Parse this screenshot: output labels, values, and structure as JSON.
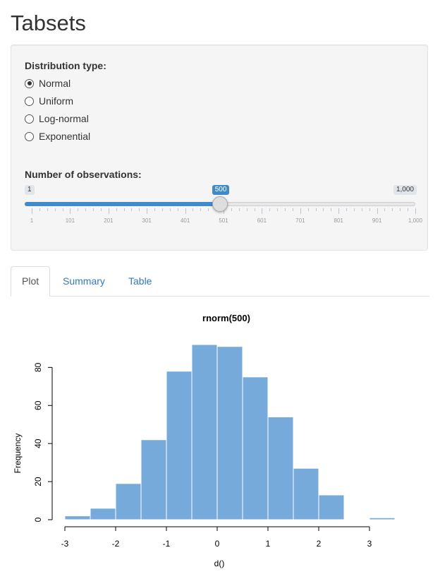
{
  "page": {
    "title": "Tabsets"
  },
  "controls": {
    "distribution": {
      "label": "Distribution type:",
      "selected": 0,
      "options": [
        "Normal",
        "Uniform",
        "Log-normal",
        "Exponential"
      ]
    },
    "observations": {
      "label": "Number of observations:",
      "min_label": "1",
      "max_label": "1,000",
      "value_label": "500",
      "min": 1,
      "max": 1000,
      "value": 500,
      "grid_labels": [
        "1",
        "101",
        "201",
        "301",
        "401",
        "501",
        "601",
        "701",
        "801",
        "901",
        "1,000"
      ]
    }
  },
  "tabs": [
    "Plot",
    "Summary",
    "Table"
  ],
  "active_tab": 0,
  "colors": {
    "accent": "#428bca",
    "bars": "#75aadb",
    "link": "#337ab7"
  },
  "chart_data": {
    "type": "bar",
    "title": "rnorm(500)",
    "xlabel": "d()",
    "ylabel": "Frequency",
    "bin_edges": [
      -3,
      -2.5,
      -2,
      -1.5,
      -1,
      -0.5,
      0,
      0.5,
      1,
      1.5,
      2,
      2.5,
      3,
      3.5
    ],
    "values": [
      2,
      6,
      19,
      42,
      78,
      92,
      91,
      75,
      54,
      27,
      13,
      0,
      1
    ],
    "xlim": [
      -3,
      3.5
    ],
    "ylim": [
      0,
      92
    ],
    "xticks": [
      -3,
      -2,
      -1,
      0,
      1,
      2,
      3
    ],
    "xtick_labels": [
      "-3",
      "-2",
      "-1",
      "0",
      "1",
      "2",
      "3"
    ],
    "yticks": [
      0,
      20,
      40,
      60,
      80
    ],
    "ytick_labels": [
      "0",
      "20",
      "40",
      "60",
      "80"
    ],
    "grid": false
  }
}
